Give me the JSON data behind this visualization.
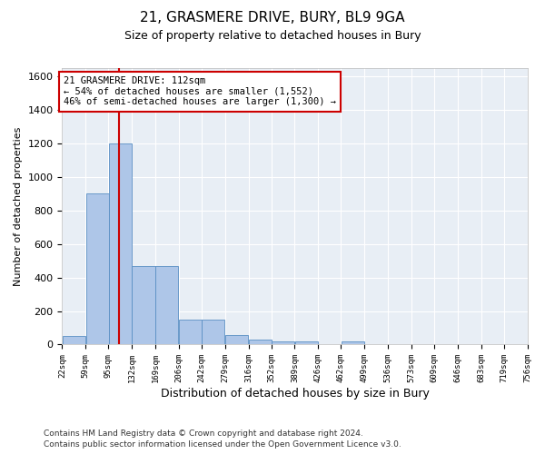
{
  "title": "21, GRASMERE DRIVE, BURY, BL9 9GA",
  "subtitle": "Size of property relative to detached houses in Bury",
  "xlabel": "Distribution of detached houses by size in Bury",
  "ylabel": "Number of detached properties",
  "footer_line1": "Contains HM Land Registry data © Crown copyright and database right 2024.",
  "footer_line2": "Contains public sector information licensed under the Open Government Licence v3.0.",
  "property_label": "21 GRASMERE DRIVE: 112sqm",
  "annotation_line1": "← 54% of detached houses are smaller (1,552)",
  "annotation_line2": "46% of semi-detached houses are larger (1,300) →",
  "red_line_x": 112,
  "bins": [
    22,
    59,
    95,
    132,
    169,
    206,
    242,
    279,
    316,
    352,
    389,
    426,
    462,
    499,
    536,
    573,
    609,
    646,
    683,
    719,
    756
  ],
  "bar_heights": [
    50,
    900,
    1200,
    470,
    470,
    150,
    150,
    55,
    30,
    20,
    20,
    0,
    20,
    0,
    0,
    0,
    0,
    0,
    0,
    0
  ],
  "bar_color": "#aec6e8",
  "bar_edge_color": "#5a8fc4",
  "red_line_color": "#cc0000",
  "background_color": "#e8eef5",
  "grid_color": "#ffffff",
  "ylim": [
    0,
    1650
  ],
  "yticks": [
    0,
    200,
    400,
    600,
    800,
    1000,
    1200,
    1400,
    1600
  ],
  "annotation_box_color": "#cc0000",
  "annotation_bg_color": "#ffffff",
  "title_fontsize": 11,
  "subtitle_fontsize": 9,
  "ylabel_fontsize": 8,
  "xlabel_fontsize": 9
}
